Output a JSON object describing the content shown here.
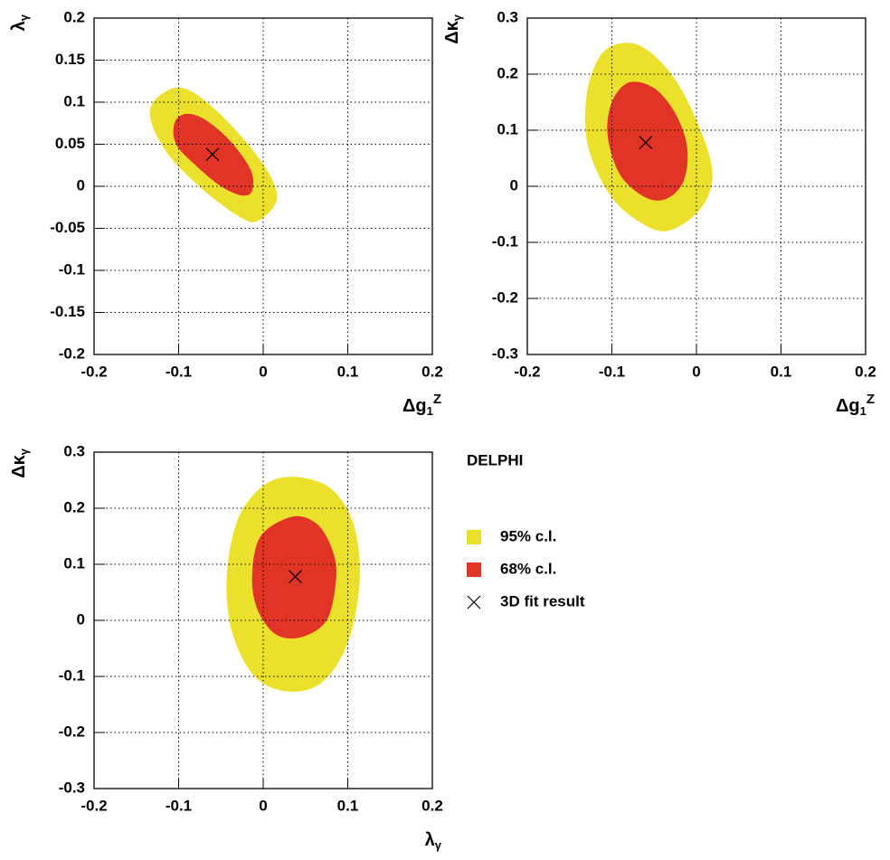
{
  "chart_data": [
    {
      "type": "contour",
      "x_label": {
        "text": "Δg",
        "sub": "1",
        "sup": "Z"
      },
      "y_label": {
        "text": "λ",
        "sub": "γ"
      },
      "xlim": [
        -0.2,
        0.2
      ],
      "ylim": [
        -0.2,
        0.2
      ],
      "xticks": [
        -0.2,
        -0.1,
        0,
        0.1,
        0.2
      ],
      "yticks": [
        -0.2,
        -0.15,
        -0.1,
        -0.05,
        0,
        0.05,
        0.1,
        0.15,
        0.2
      ],
      "grid": true,
      "series": [
        {
          "color": "#ebe12d",
          "x": [
            -0.105,
            -0.08,
            -0.045,
            -0.01,
            0.012,
            0.015,
            -0.008,
            -0.03,
            -0.07,
            -0.11,
            -0.132,
            -0.13
          ],
          "y": [
            0.117,
            0.11,
            0.08,
            0.04,
            0.005,
            -0.02,
            -0.042,
            -0.035,
            -0.005,
            0.035,
            0.075,
            0.1
          ]
        },
        {
          "color": "#e03526",
          "x": [
            -0.092,
            -0.07,
            -0.04,
            -0.015,
            -0.013,
            -0.025,
            -0.05,
            -0.08,
            -0.103,
            -0.105
          ],
          "y": [
            0.086,
            0.08,
            0.055,
            0.02,
            -0.005,
            -0.011,
            0,
            0.025,
            0.05,
            0.075
          ]
        }
      ],
      "fit": {
        "x": -0.06,
        "y": 0.038
      }
    },
    {
      "type": "contour",
      "x_label": {
        "text": "Δg",
        "sub": "1",
        "sup": "Z"
      },
      "y_label": {
        "text": "Δκ",
        "sub": "γ"
      },
      "xlim": [
        -0.2,
        0.2
      ],
      "ylim": [
        -0.3,
        0.3
      ],
      "xticks": [
        -0.2,
        -0.1,
        0,
        0.1,
        0.2
      ],
      "yticks": [
        -0.3,
        -0.2,
        -0.1,
        0,
        0.1,
        0.2,
        0.3
      ],
      "grid": true,
      "series": [
        {
          "color": "#ebe12d",
          "x": [
            -0.09,
            -0.06,
            -0.025,
            0.005,
            0.019,
            0.005,
            -0.03,
            -0.06,
            -0.1,
            -0.128,
            -0.13,
            -0.115
          ],
          "y": [
            0.255,
            0.245,
            0.19,
            0.1,
            0.02,
            -0.04,
            -0.078,
            -0.07,
            -0.02,
            0.07,
            0.16,
            0.23
          ]
        },
        {
          "color": "#e03526",
          "x": [
            -0.08,
            -0.05,
            -0.025,
            -0.011,
            -0.015,
            -0.035,
            -0.06,
            -0.09,
            -0.105,
            -0.1
          ],
          "y": [
            0.185,
            0.175,
            0.13,
            0.07,
            0.01,
            -0.022,
            -0.02,
            0.02,
            0.09,
            0.15
          ]
        }
      ],
      "fit": {
        "x": -0.06,
        "y": 0.078
      }
    },
    {
      "type": "contour",
      "x_label": {
        "text": "λ",
        "sub": "γ"
      },
      "y_label": {
        "text": "Δκ",
        "sub": "γ"
      },
      "xlim": [
        -0.2,
        0.2
      ],
      "ylim": [
        -0.3,
        0.3
      ],
      "xticks": [
        -0.2,
        -0.1,
        0,
        0.1,
        0.2
      ],
      "yticks": [
        -0.3,
        -0.2,
        -0.1,
        0,
        0.1,
        0.2,
        0.3
      ],
      "grid": true,
      "series": [
        {
          "color": "#ebe12d",
          "x": [
            0.036,
            0.08,
            0.107,
            0.114,
            0.1,
            0.07,
            0.03,
            -0.01,
            -0.037,
            -0.043,
            -0.03,
            0.0
          ],
          "y": [
            0.256,
            0.235,
            0.17,
            0.07,
            -0.04,
            -0.11,
            -0.127,
            -0.1,
            -0.02,
            0.08,
            0.18,
            0.24
          ]
        },
        {
          "color": "#e03526",
          "x": [
            0.035,
            0.065,
            0.083,
            0.086,
            0.075,
            0.045,
            0.015,
            -0.007,
            -0.013,
            -0.003
          ],
          "y": [
            0.185,
            0.17,
            0.12,
            0.07,
            0.0,
            -0.03,
            -0.025,
            0.02,
            0.08,
            0.15
          ]
        }
      ],
      "fit": {
        "x": 0.038,
        "y": 0.078
      }
    }
  ],
  "legend": {
    "title": "DELPHI",
    "entries": [
      {
        "name": "95% c.l.",
        "color": "#ebe12d"
      },
      {
        "name": "68% c.l.",
        "color": "#e03526"
      },
      {
        "name": "3D fit result",
        "marker": "x"
      }
    ]
  }
}
